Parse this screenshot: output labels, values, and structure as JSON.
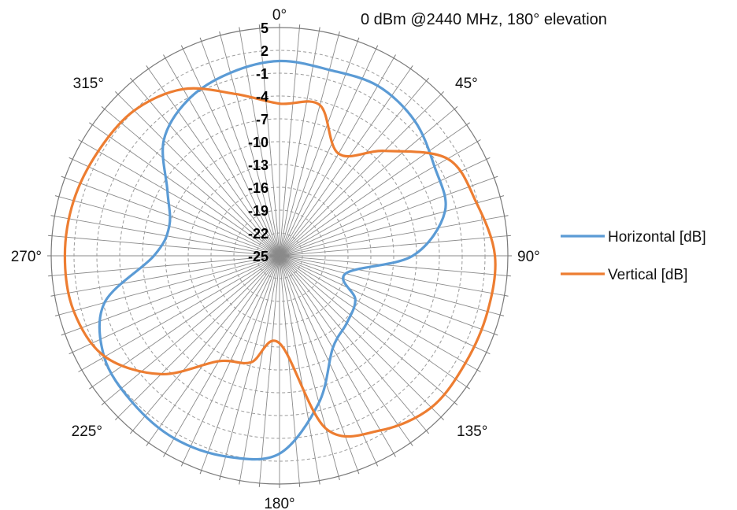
{
  "chart_data": {
    "type": "polar-line",
    "title": "0 dBm @2440 MHz, 180° elevation",
    "angle_labels": [
      {
        "angle": 0,
        "text": "0°"
      },
      {
        "angle": 45,
        "text": "45°"
      },
      {
        "angle": 90,
        "text": "90°"
      },
      {
        "angle": 135,
        "text": "135°"
      },
      {
        "angle": 180,
        "text": "180°"
      },
      {
        "angle": 225,
        "text": "225°"
      },
      {
        "angle": 270,
        "text": "270°"
      },
      {
        "angle": 315,
        "text": "315°"
      }
    ],
    "radial_range": [
      -25,
      5
    ],
    "radial_ticks": [
      5,
      2,
      -1,
      -4,
      -7,
      -10,
      -13,
      -16,
      -19,
      -22,
      -25
    ],
    "radial_tick_labels": [
      "5",
      "2",
      "-1",
      "-4",
      "-7",
      "-10",
      "-13",
      "-16",
      "-19",
      "-22",
      "-25"
    ],
    "angular_grid_step": 5,
    "grid": true,
    "legend_position": "right",
    "angles": [
      0,
      15,
      30,
      45,
      60,
      75,
      90,
      105,
      120,
      135,
      150,
      165,
      180,
      195,
      210,
      225,
      240,
      255,
      270,
      285,
      300,
      315,
      330,
      345
    ],
    "series": [
      {
        "name": "Horizontal [dB]",
        "color": "#5b9bd5",
        "values": [
          0.6,
          0.3,
          0.8,
          0.1,
          -1.5,
          -2.5,
          -7.5,
          -16.0,
          -13.5,
          -12.5,
          -11.0,
          -5.0,
          1.0,
          2.3,
          2.7,
          2.3,
          1.6,
          -1.2,
          -8.5,
          -10.0,
          -8.0,
          -3.5,
          -1.2,
          -0.1
        ]
      },
      {
        "name": "Vertical [dB]",
        "color": "#ed7d31",
        "values": [
          -5.0,
          -4.5,
          -9.5,
          -5.5,
          0.5,
          1.8,
          3.3,
          3.3,
          3.2,
          3.2,
          1.5,
          -1.5,
          -13.5,
          -10.5,
          -9.0,
          -3.0,
          1.5,
          3.0,
          3.2,
          3.0,
          2.5,
          2.0,
          0.3,
          -3.0
        ]
      }
    ]
  }
}
